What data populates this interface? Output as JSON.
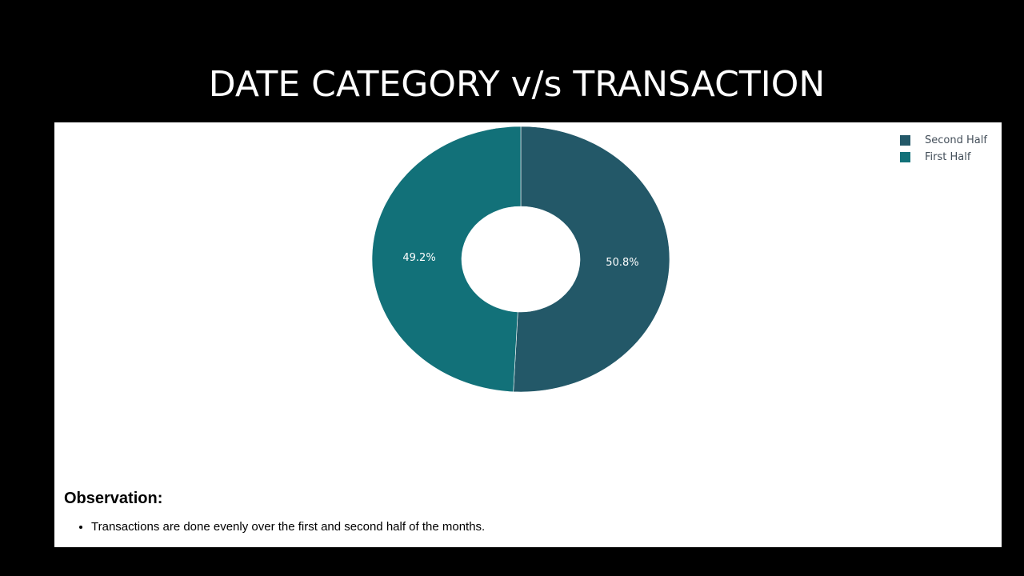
{
  "slide": {
    "title": "DATE CATEGORY v/s TRANSACTION"
  },
  "chart_data": {
    "type": "pie",
    "hole": true,
    "slices": [
      {
        "label": "Second Half",
        "value": 50.8,
        "text": "50.8%",
        "color": "#235868"
      },
      {
        "label": "First Half",
        "value": 49.2,
        "text": "49.2%",
        "color": "#127179"
      }
    ],
    "legend_position": "top-right"
  },
  "observation": {
    "heading": "Observation:",
    "points": [
      "Transactions are done evenly over the first and second half of the months."
    ]
  }
}
